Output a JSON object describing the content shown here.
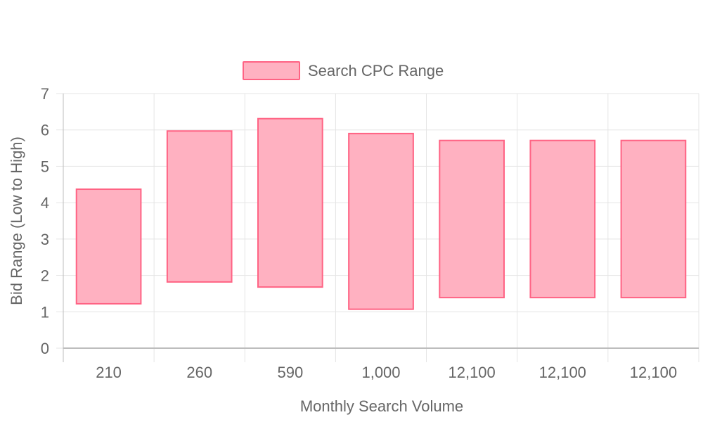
{
  "chart_data": {
    "type": "bar",
    "categories": [
      "210",
      "260",
      "590",
      "1,000",
      "12,100",
      "12,100",
      "12,100"
    ],
    "series": [
      {
        "name": "Search CPC Range",
        "ranges": [
          [
            1.22,
            4.37
          ],
          [
            1.82,
            5.97
          ],
          [
            1.68,
            6.31
          ],
          [
            1.07,
            5.9
          ],
          [
            1.39,
            5.71
          ],
          [
            1.39,
            5.71
          ],
          [
            1.39,
            5.71
          ]
        ]
      }
    ],
    "xlabel": "Monthly Search Volume",
    "ylabel": "Bid Range (Low to High)",
    "ylim": [
      0,
      7
    ],
    "yticks": [
      "0",
      "1",
      "2",
      "3",
      "4",
      "5",
      "6",
      "7"
    ],
    "grid": true,
    "legend_position": "top",
    "colors": {
      "bar_fill": "#ffb1c1",
      "bar_stroke": "#ff6384",
      "grid": "#e5e5e5",
      "axis": "#bdbdbd",
      "text": "#666666"
    }
  }
}
